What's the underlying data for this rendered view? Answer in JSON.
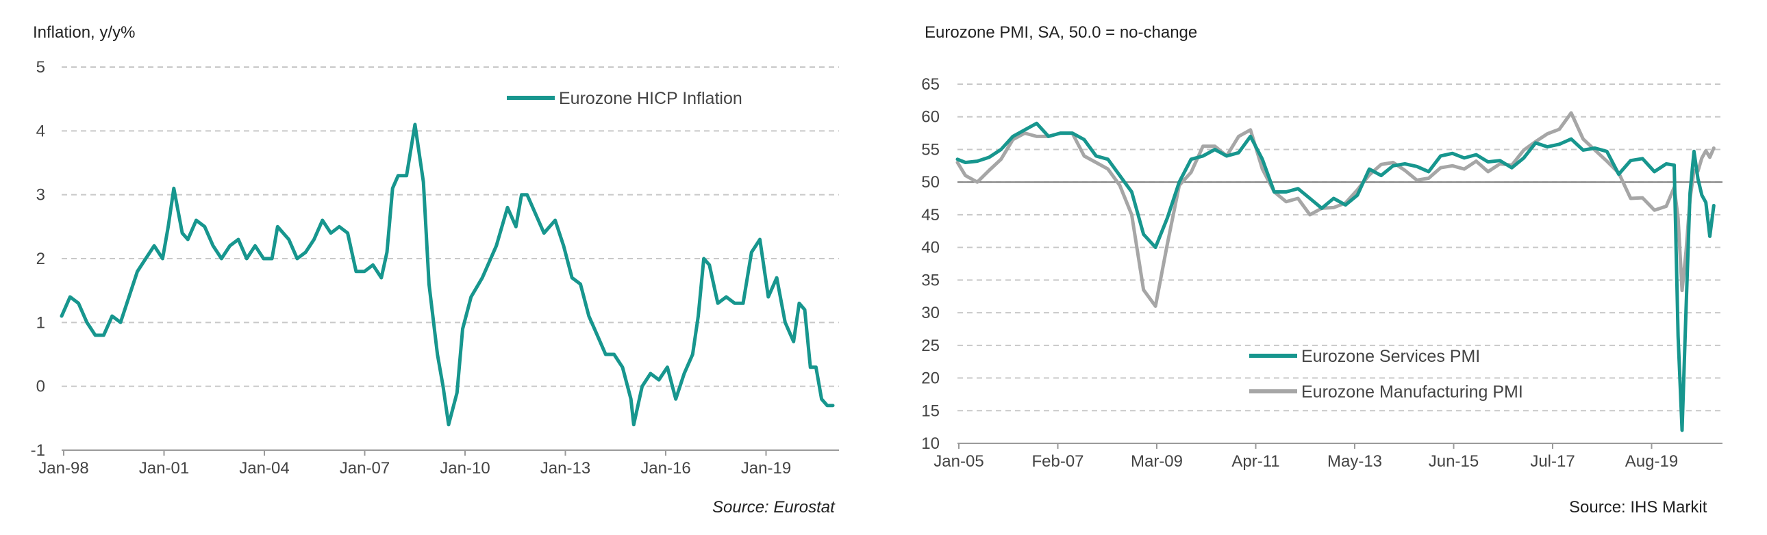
{
  "chart_data": [
    {
      "type": "line",
      "title": "Inflation, y/y%",
      "source": "Source: Eurostat",
      "ylim": [
        -1,
        5
      ],
      "yticks": [
        "5",
        "4",
        "3",
        "2",
        "1",
        "0",
        "-1"
      ],
      "xticks": [
        "Jan-98",
        "Jan-01",
        "Jan-04",
        "Jan-07",
        "Jan-10",
        "Jan-13",
        "Jan-16",
        "Jan-19"
      ],
      "grid": "dashed horizontal",
      "legend_position": "top-right",
      "series": [
        {
          "name": "Eurozone HICP Inflation",
          "color": "#17968E",
          "points": [
            [
              "1998-01",
              1.1
            ],
            [
              "1998-04",
              1.4
            ],
            [
              "1998-07",
              1.3
            ],
            [
              "1998-10",
              1.0
            ],
            [
              "1999-01",
              0.8
            ],
            [
              "1999-04",
              0.8
            ],
            [
              "1999-07",
              1.1
            ],
            [
              "1999-10",
              1.0
            ],
            [
              "2000-01",
              1.4
            ],
            [
              "2000-04",
              1.8
            ],
            [
              "2000-07",
              2.0
            ],
            [
              "2000-10",
              2.2
            ],
            [
              "2001-01",
              2.0
            ],
            [
              "2001-03",
              2.5
            ],
            [
              "2001-05",
              3.1
            ],
            [
              "2001-08",
              2.4
            ],
            [
              "2001-10",
              2.3
            ],
            [
              "2002-01",
              2.6
            ],
            [
              "2002-04",
              2.5
            ],
            [
              "2002-07",
              2.2
            ],
            [
              "2002-10",
              2.0
            ],
            [
              "2003-01",
              2.2
            ],
            [
              "2003-04",
              2.3
            ],
            [
              "2003-07",
              2.0
            ],
            [
              "2003-10",
              2.2
            ],
            [
              "2004-01",
              2.0
            ],
            [
              "2004-04",
              2.0
            ],
            [
              "2004-06",
              2.5
            ],
            [
              "2004-10",
              2.3
            ],
            [
              "2005-01",
              2.0
            ],
            [
              "2005-04",
              2.1
            ],
            [
              "2005-07",
              2.3
            ],
            [
              "2005-10",
              2.6
            ],
            [
              "2006-01",
              2.4
            ],
            [
              "2006-04",
              2.5
            ],
            [
              "2006-07",
              2.4
            ],
            [
              "2006-10",
              1.8
            ],
            [
              "2007-01",
              1.8
            ],
            [
              "2007-04",
              1.9
            ],
            [
              "2007-07",
              1.7
            ],
            [
              "2007-09",
              2.1
            ],
            [
              "2007-11",
              3.1
            ],
            [
              "2008-01",
              3.3
            ],
            [
              "2008-04",
              3.3
            ],
            [
              "2008-07",
              4.1
            ],
            [
              "2008-10",
              3.2
            ],
            [
              "2008-12",
              1.6
            ],
            [
              "2009-03",
              0.5
            ],
            [
              "2009-05",
              0.0
            ],
            [
              "2009-07",
              -0.6
            ],
            [
              "2009-10",
              -0.1
            ],
            [
              "2009-12",
              0.9
            ],
            [
              "2010-03",
              1.4
            ],
            [
              "2010-07",
              1.7
            ],
            [
              "2010-12",
              2.2
            ],
            [
              "2011-04",
              2.8
            ],
            [
              "2011-07",
              2.5
            ],
            [
              "2011-09",
              3.0
            ],
            [
              "2011-11",
              3.0
            ],
            [
              "2012-02",
              2.7
            ],
            [
              "2012-05",
              2.4
            ],
            [
              "2012-09",
              2.6
            ],
            [
              "2012-12",
              2.2
            ],
            [
              "2013-03",
              1.7
            ],
            [
              "2013-06",
              1.6
            ],
            [
              "2013-09",
              1.1
            ],
            [
              "2013-12",
              0.8
            ],
            [
              "2014-03",
              0.5
            ],
            [
              "2014-06",
              0.5
            ],
            [
              "2014-09",
              0.3
            ],
            [
              "2014-12",
              -0.2
            ],
            [
              "2015-01",
              -0.6
            ],
            [
              "2015-04",
              0.0
            ],
            [
              "2015-07",
              0.2
            ],
            [
              "2015-10",
              0.1
            ],
            [
              "2016-01",
              0.3
            ],
            [
              "2016-04",
              -0.2
            ],
            [
              "2016-07",
              0.2
            ],
            [
              "2016-10",
              0.5
            ],
            [
              "2016-12",
              1.1
            ],
            [
              "2017-02",
              2.0
            ],
            [
              "2017-04",
              1.9
            ],
            [
              "2017-07",
              1.3
            ],
            [
              "2017-10",
              1.4
            ],
            [
              "2018-01",
              1.3
            ],
            [
              "2018-04",
              1.3
            ],
            [
              "2018-07",
              2.1
            ],
            [
              "2018-10",
              2.3
            ],
            [
              "2019-01",
              1.4
            ],
            [
              "2019-04",
              1.7
            ],
            [
              "2019-07",
              1.0
            ],
            [
              "2019-10",
              0.7
            ],
            [
              "2019-12",
              1.3
            ],
            [
              "2020-02",
              1.2
            ],
            [
              "2020-04",
              0.3
            ],
            [
              "2020-06",
              0.3
            ],
            [
              "2020-08",
              -0.2
            ],
            [
              "2020-10",
              -0.3
            ],
            [
              "2020-12",
              -0.3
            ]
          ]
        }
      ]
    },
    {
      "type": "line",
      "title": "Eurozone PMI, SA, 50.0 = no-change",
      "source": "Source: IHS Markit",
      "ylim": [
        10,
        65
      ],
      "yticks": [
        "65",
        "60",
        "55",
        "50",
        "45",
        "40",
        "35",
        "30",
        "25",
        "20",
        "15",
        "10"
      ],
      "xticks": [
        "Jan-05",
        "Feb-07",
        "Mar-09",
        "Apr-11",
        "May-13",
        "Jun-15",
        "Jul-17",
        "Aug-19"
      ],
      "grid": "dashed horizontal",
      "reference_line": 50,
      "legend_position": "bottom-left",
      "series": [
        {
          "name": "Eurozone Services PMI",
          "color": "#17968E",
          "points": [
            [
              "2005-01",
              53.5
            ],
            [
              "2005-03",
              53.0
            ],
            [
              "2005-06",
              53.2
            ],
            [
              "2005-09",
              53.8
            ],
            [
              "2005-12",
              55.0
            ],
            [
              "2006-03",
              57.0
            ],
            [
              "2006-06",
              58.0
            ],
            [
              "2006-09",
              59.0
            ],
            [
              "2006-12",
              57.0
            ],
            [
              "2007-03",
              57.5
            ],
            [
              "2007-06",
              57.5
            ],
            [
              "2007-09",
              56.5
            ],
            [
              "2007-12",
              54.0
            ],
            [
              "2008-03",
              53.5
            ],
            [
              "2008-06",
              51.0
            ],
            [
              "2008-09",
              48.5
            ],
            [
              "2008-12",
              42.0
            ],
            [
              "2009-03",
              40.0
            ],
            [
              "2009-06",
              44.5
            ],
            [
              "2009-09",
              50.0
            ],
            [
              "2009-12",
              53.5
            ],
            [
              "2010-03",
              54.0
            ],
            [
              "2010-06",
              55.0
            ],
            [
              "2010-09",
              54.0
            ],
            [
              "2010-12",
              54.5
            ],
            [
              "2011-03",
              57.0
            ],
            [
              "2011-06",
              53.5
            ],
            [
              "2011-09",
              48.5
            ],
            [
              "2011-12",
              48.5
            ],
            [
              "2012-03",
              49.0
            ],
            [
              "2012-06",
              47.5
            ],
            [
              "2012-09",
              46.0
            ],
            [
              "2012-12",
              47.5
            ],
            [
              "2013-03",
              46.5
            ],
            [
              "2013-06",
              48.0
            ],
            [
              "2013-09",
              52.0
            ],
            [
              "2013-12",
              51.0
            ],
            [
              "2014-03",
              52.5
            ],
            [
              "2014-06",
              52.8
            ],
            [
              "2014-09",
              52.4
            ],
            [
              "2014-12",
              51.6
            ],
            [
              "2015-03",
              54.0
            ],
            [
              "2015-06",
              54.4
            ],
            [
              "2015-09",
              53.7
            ],
            [
              "2015-12",
              54.2
            ],
            [
              "2016-03",
              53.1
            ],
            [
              "2016-06",
              53.3
            ],
            [
              "2016-09",
              52.2
            ],
            [
              "2016-12",
              53.7
            ],
            [
              "2017-03",
              56.0
            ],
            [
              "2017-06",
              55.4
            ],
            [
              "2017-09",
              55.8
            ],
            [
              "2017-12",
              56.6
            ],
            [
              "2018-03",
              54.9
            ],
            [
              "2018-06",
              55.2
            ],
            [
              "2018-09",
              54.7
            ],
            [
              "2018-12",
              51.2
            ],
            [
              "2019-03",
              53.3
            ],
            [
              "2019-06",
              53.6
            ],
            [
              "2019-09",
              51.6
            ],
            [
              "2019-12",
              52.8
            ],
            [
              "2020-02",
              52.6
            ],
            [
              "2020-03",
              26.4
            ],
            [
              "2020-04",
              12.0
            ],
            [
              "2020-05",
              30.5
            ],
            [
              "2020-06",
              48.3
            ],
            [
              "2020-07",
              54.7
            ],
            [
              "2020-08",
              50.5
            ],
            [
              "2020-09",
              48.0
            ],
            [
              "2020-10",
              46.9
            ],
            [
              "2020-11",
              41.7
            ],
            [
              "2020-12",
              46.4
            ]
          ]
        },
        {
          "name": "Eurozone Manufacturing PMI",
          "color": "#A6A6A6",
          "points": [
            [
              "2005-01",
              53.0
            ],
            [
              "2005-03",
              51.0
            ],
            [
              "2005-06",
              50.0
            ],
            [
              "2005-09",
              51.8
            ],
            [
              "2005-12",
              53.5
            ],
            [
              "2006-03",
              56.5
            ],
            [
              "2006-06",
              57.5
            ],
            [
              "2006-09",
              57.0
            ],
            [
              "2006-12",
              57.0
            ],
            [
              "2007-03",
              57.5
            ],
            [
              "2007-06",
              57.5
            ],
            [
              "2007-09",
              54.0
            ],
            [
              "2007-12",
              53.0
            ],
            [
              "2008-03",
              52.0
            ],
            [
              "2008-06",
              49.5
            ],
            [
              "2008-09",
              45.0
            ],
            [
              "2008-12",
              33.5
            ],
            [
              "2009-03",
              31.0
            ],
            [
              "2009-06",
              40.5
            ],
            [
              "2009-09",
              49.5
            ],
            [
              "2009-12",
              51.5
            ],
            [
              "2010-03",
              55.5
            ],
            [
              "2010-06",
              55.5
            ],
            [
              "2010-09",
              54.0
            ],
            [
              "2010-12",
              57.0
            ],
            [
              "2011-03",
              58.0
            ],
            [
              "2011-06",
              52.0
            ],
            [
              "2011-09",
              48.5
            ],
            [
              "2011-12",
              47.0
            ],
            [
              "2012-03",
              47.5
            ],
            [
              "2012-06",
              45.0
            ],
            [
              "2012-09",
              46.0
            ],
            [
              "2012-12",
              46.1
            ],
            [
              "2013-03",
              46.8
            ],
            [
              "2013-06",
              48.8
            ],
            [
              "2013-09",
              51.1
            ],
            [
              "2013-12",
              52.7
            ],
            [
              "2014-03",
              53.0
            ],
            [
              "2014-06",
              51.8
            ],
            [
              "2014-09",
              50.3
            ],
            [
              "2014-12",
              50.6
            ],
            [
              "2015-03",
              52.2
            ],
            [
              "2015-06",
              52.5
            ],
            [
              "2015-09",
              52.0
            ],
            [
              "2015-12",
              53.2
            ],
            [
              "2016-03",
              51.6
            ],
            [
              "2016-06",
              52.8
            ],
            [
              "2016-09",
              52.6
            ],
            [
              "2016-12",
              54.9
            ],
            [
              "2017-03",
              56.2
            ],
            [
              "2017-06",
              57.4
            ],
            [
              "2017-09",
              58.1
            ],
            [
              "2017-12",
              60.6
            ],
            [
              "2018-03",
              56.6
            ],
            [
              "2018-06",
              54.9
            ],
            [
              "2018-09",
              53.2
            ],
            [
              "2018-12",
              51.4
            ],
            [
              "2019-03",
              47.5
            ],
            [
              "2019-06",
              47.6
            ],
            [
              "2019-09",
              45.7
            ],
            [
              "2019-12",
              46.3
            ],
            [
              "2020-02",
              49.2
            ],
            [
              "2020-03",
              44.5
            ],
            [
              "2020-04",
              33.4
            ],
            [
              "2020-05",
              39.4
            ],
            [
              "2020-06",
              47.4
            ],
            [
              "2020-07",
              51.8
            ],
            [
              "2020-08",
              51.7
            ],
            [
              "2020-09",
              53.7
            ],
            [
              "2020-10",
              54.8
            ],
            [
              "2020-11",
              53.8
            ],
            [
              "2020-12",
              55.2
            ]
          ]
        }
      ]
    }
  ]
}
